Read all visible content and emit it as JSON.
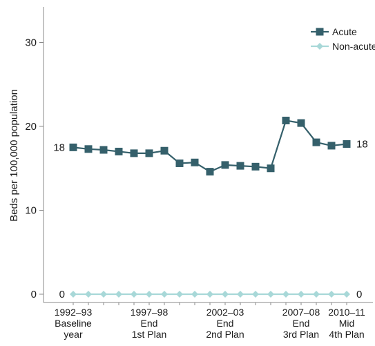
{
  "chart_data": {
    "type": "line",
    "title": "",
    "ylabel": "Beds per 100,000 population",
    "xlabel": "",
    "ylim": [
      0,
      33
    ],
    "yticks": [
      0,
      10,
      20,
      30
    ],
    "grid": false,
    "legend_position": "top-right",
    "x": [
      "1992-93",
      "1993-94",
      "1994-95",
      "1995-96",
      "1996-97",
      "1997-98",
      "1998-99",
      "1999-00",
      "2000-01",
      "2001-02",
      "2002-03",
      "2003-04",
      "2004-05",
      "2005-06",
      "2006-07",
      "2007-08",
      "2008-09",
      "2009-10",
      "2010-11"
    ],
    "xtick_labels": [
      {
        "index": 0,
        "lines": [
          "1992–93",
          "Baseline",
          "year"
        ]
      },
      {
        "index": 5,
        "lines": [
          "1997–98",
          "End",
          "1st Plan"
        ]
      },
      {
        "index": 10,
        "lines": [
          "2002–03",
          "End",
          "2nd Plan"
        ]
      },
      {
        "index": 15,
        "lines": [
          "2007–08",
          "End",
          "3rd Plan"
        ]
      },
      {
        "index": 18,
        "lines": [
          "2010–11",
          "Mid",
          "4th Plan"
        ]
      }
    ],
    "series": [
      {
        "name": "Acute",
        "color": "#35606b",
        "marker": "square",
        "values": [
          17.5,
          17.3,
          17.2,
          17.0,
          16.8,
          16.8,
          17.1,
          15.6,
          15.7,
          14.6,
          15.4,
          15.3,
          15.2,
          15.0,
          20.7,
          20.4,
          18.1,
          17.7,
          17.9
        ]
      },
      {
        "name": "Non-acute",
        "color": "#a8d8d8",
        "marker": "diamond",
        "values": [
          0,
          0,
          0,
          0,
          0,
          0,
          0,
          0,
          0,
          0,
          0,
          0,
          0,
          0,
          0,
          0,
          0,
          0,
          0
        ]
      }
    ],
    "annotations": [
      {
        "text": "18",
        "series": "Acute",
        "side": "left"
      },
      {
        "text": "18",
        "series": "Acute",
        "side": "right"
      },
      {
        "text": "0",
        "series": "Non-acute",
        "side": "left"
      },
      {
        "text": "0",
        "series": "Non-acute",
        "side": "right"
      }
    ]
  }
}
